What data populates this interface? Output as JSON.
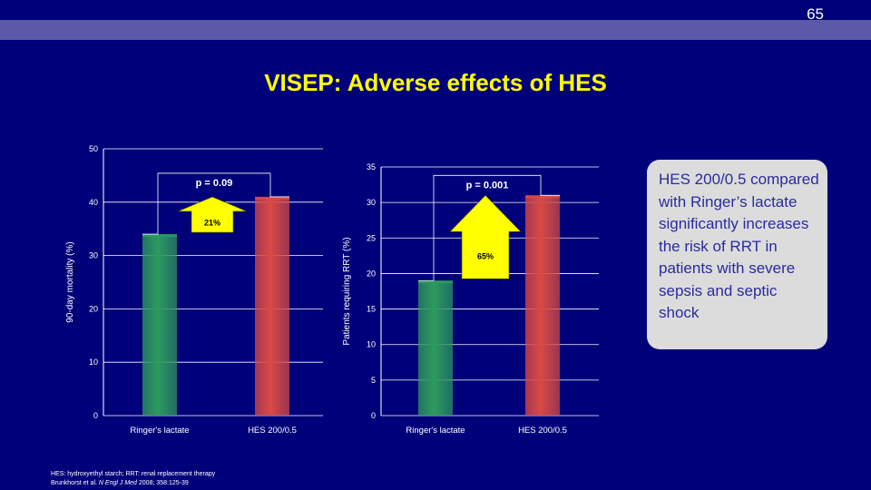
{
  "slide_number": "65",
  "title": "VISEP: Adverse effects of HES",
  "note": "HES 200/0.5 compared with Ringer’s lactate significantly increases the risk of RRT in patients with severe sepsis and septic shock",
  "footnote": {
    "line1": "HES: hydroxyethyl starch; RRT: renal replacement therapy",
    "line2_before": "Brunkhorst et al. ",
    "line2_journal": "N Engl J Med",
    "line2_after": " 2008; 358:125-39"
  },
  "colors": {
    "background": "#00007a",
    "title": "#ffff00",
    "bar_ringers": "#2e9a5e",
    "bar_hes": "#d94a44",
    "arrow": "#ffff00",
    "note_box": "#dcdcdc",
    "note_text": "#2a2aa0"
  },
  "chart_data": [
    {
      "type": "bar",
      "categories": [
        "Ringer's lactate",
        "HES 200/0.5"
      ],
      "values": [
        34,
        41
      ],
      "ylabel": "90-day mortality (%)",
      "ylim": [
        0,
        50
      ],
      "yticks": [
        0,
        10,
        20,
        30,
        40,
        50
      ],
      "grid": true,
      "p_value": "p = 0.09",
      "increase_label": "21%"
    },
    {
      "type": "bar",
      "categories": [
        "Ringer's lactate",
        "HES 200/0.5"
      ],
      "values": [
        19,
        31
      ],
      "ylabel": "Patients requiring RRT (%)",
      "ylim": [
        0,
        35
      ],
      "yticks": [
        0,
        5,
        10,
        15,
        20,
        25,
        30,
        35
      ],
      "grid": true,
      "p_value": "p = 0.001",
      "increase_label": "65%"
    }
  ]
}
